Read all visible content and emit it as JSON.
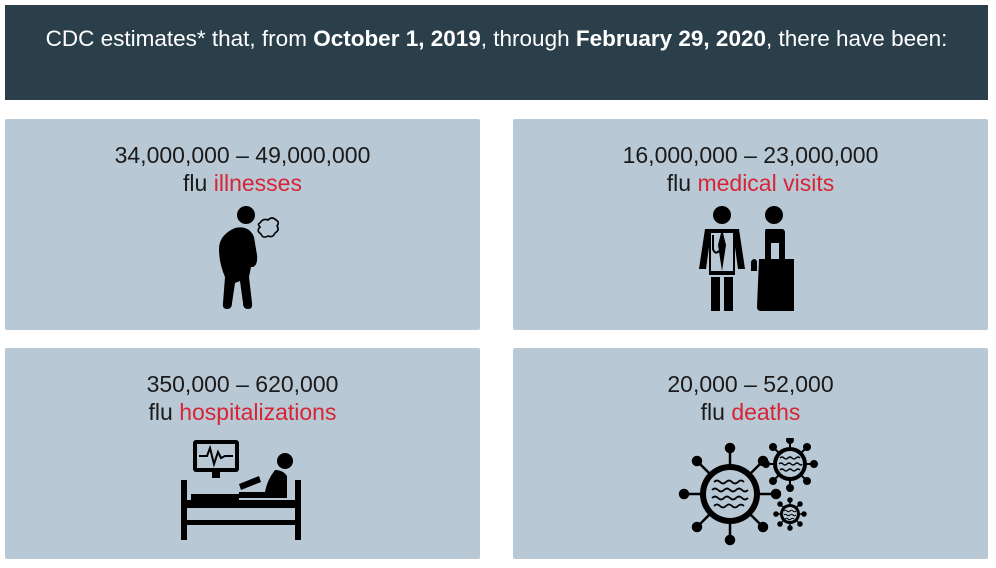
{
  "header": {
    "text_pre": "CDC estimates* that, from ",
    "date_start": "October 1, 2019",
    "text_mid": ", through ",
    "date_end": "February 29, 2020",
    "text_post": ", there have been:"
  },
  "cards": [
    {
      "range": "34,000,000 – 49,000,000",
      "prefix": "flu ",
      "accent": "illnesses",
      "icon": "sick-person-coughing-icon"
    },
    {
      "range": "16,000,000 – 23,000,000",
      "prefix": "flu ",
      "accent": "medical visits",
      "icon": "doctor-patient-icon"
    },
    {
      "range": "350,000 – 620,000",
      "prefix": "flu ",
      "accent": "hospitalizations",
      "icon": "hospital-bed-monitor-icon"
    },
    {
      "range": "20,000 – 52,000",
      "prefix": "flu ",
      "accent": "deaths",
      "icon": "virus-icon"
    }
  ],
  "colors": {
    "header_bg": "#2b3f4b",
    "card_bg": "#b8c8d5",
    "accent": "#d62536"
  }
}
